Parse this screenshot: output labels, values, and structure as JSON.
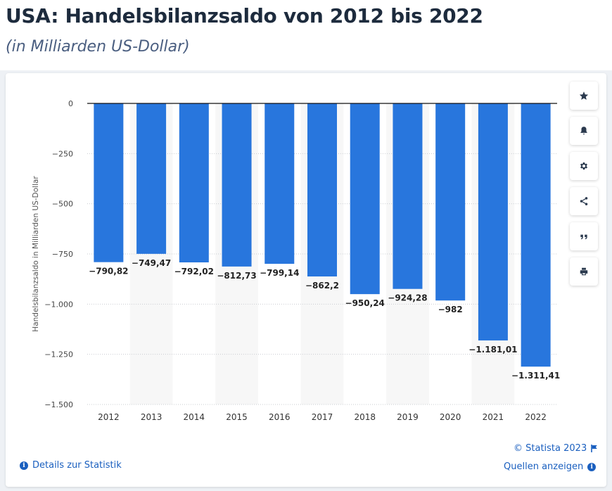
{
  "header": {
    "title": "USA: Handelsbilanzsaldo von 2012 bis 2022",
    "subtitle": "(in Milliarden US-Dollar)"
  },
  "chart_data": {
    "type": "bar",
    "categories": [
      "2012",
      "2013",
      "2014",
      "2015",
      "2016",
      "2017",
      "2018",
      "2019",
      "2020",
      "2021",
      "2022"
    ],
    "values": [
      -790.82,
      -749.47,
      -792.02,
      -812.73,
      -799.14,
      -862.2,
      -950.24,
      -924.28,
      -982,
      -1181.01,
      -1311.41
    ],
    "value_labels": [
      "−790,82",
      "−749,47",
      "−792,02",
      "−812,73",
      "−799,14",
      "−862,2",
      "−950,24",
      "−924,28",
      "−982",
      "−1.181,01",
      "−1.311,41"
    ],
    "ylabel": "Handelsbilanzsaldo in Milliarden US-Dollar",
    "ylim": [
      -1500,
      0
    ],
    "yticks": [
      0,
      -250,
      -500,
      -750,
      -1000,
      -1250,
      -1500
    ],
    "ytick_labels": [
      "0",
      "−250",
      "−500",
      "−750",
      "−1.000",
      "−1.250",
      "−1.500"
    ],
    "bar_color": "#2876dd",
    "grid": true
  },
  "sidebar": {
    "buttons": [
      {
        "name": "star-icon"
      },
      {
        "name": "bell-icon"
      },
      {
        "name": "gear-icon"
      },
      {
        "name": "share-icon"
      },
      {
        "name": "quote-icon"
      },
      {
        "name": "print-icon"
      }
    ]
  },
  "footer": {
    "copyright": "© Statista 2023",
    "details_link": "Details zur Statistik",
    "sources_link": "Quellen anzeigen"
  }
}
